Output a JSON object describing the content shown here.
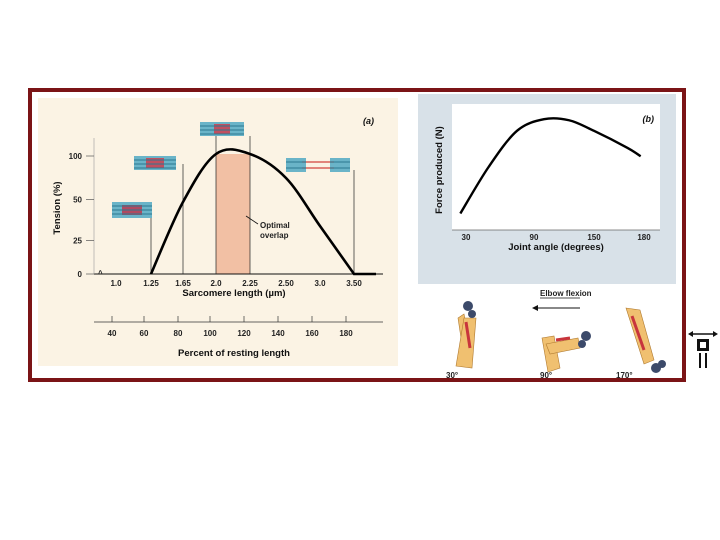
{
  "colors": {
    "frame": "#7b1416",
    "panel_a_bg": "#fbf3e4",
    "panel_b_bg": "#d8e1e8",
    "overlap_band": "#f2c0a4",
    "curve": "#000000",
    "myofilament": "#3a8fa8",
    "actin_red": "#d2433c",
    "arm_skin": "#f0c070",
    "muscle": "#c8353c",
    "dumbbell": "#3c4a6a"
  },
  "chart_data": [
    {
      "type": "line",
      "panel_label": "(a)",
      "ylabel": "Tension (%)",
      "xlabel": "Sarcomere length (µm)",
      "secondary_xlabel": "Percent of resting length",
      "y_ticks": [
        "100",
        "50",
        "25",
        "0"
      ],
      "x_ticks": [
        "1.0",
        "1.25",
        "1.65",
        "2.0",
        "2.25",
        "2.50",
        "3.0",
        "3.50"
      ],
      "secondary_x_ticks": [
        "40",
        "60",
        "80",
        "100",
        "120",
        "140",
        "160",
        "180"
      ],
      "ylim": [
        0,
        110
      ],
      "overlap_band": {
        "from": "2.0",
        "to": "2.25"
      },
      "annotation": "Optimal\noverlap",
      "series": [
        {
          "points": [
            {
              "x": 1.25,
              "y": 0
            },
            {
              "x": 1.65,
              "y": 60
            },
            {
              "x": 2.0,
              "y": 100
            },
            {
              "x": 2.25,
              "y": 100
            },
            {
              "x": 2.5,
              "y": 80
            },
            {
              "x": 3.0,
              "y": 40
            },
            {
              "x": 3.5,
              "y": 0
            }
          ]
        }
      ],
      "grid": false
    },
    {
      "type": "line",
      "panel_label": "(b)",
      "ylabel": "Force produced (N)",
      "xlabel": "Joint angle (degrees)",
      "x_ticks": [
        "30",
        "90",
        "150",
        "180"
      ],
      "xlim": [
        20,
        190
      ],
      "series": [
        {
          "points": [
            {
              "x": 25,
              "y": 8
            },
            {
              "x": 50,
              "y": 52
            },
            {
              "x": 75,
              "y": 86
            },
            {
              "x": 100,
              "y": 97
            },
            {
              "x": 125,
              "y": 96
            },
            {
              "x": 150,
              "y": 86
            },
            {
              "x": 170,
              "y": 70
            },
            {
              "x": 178,
              "y": 62
            }
          ]
        }
      ],
      "grid": false
    }
  ],
  "illustration": {
    "title": "Elbow flexion",
    "angles": [
      "30°",
      "90°",
      "170°"
    ]
  }
}
